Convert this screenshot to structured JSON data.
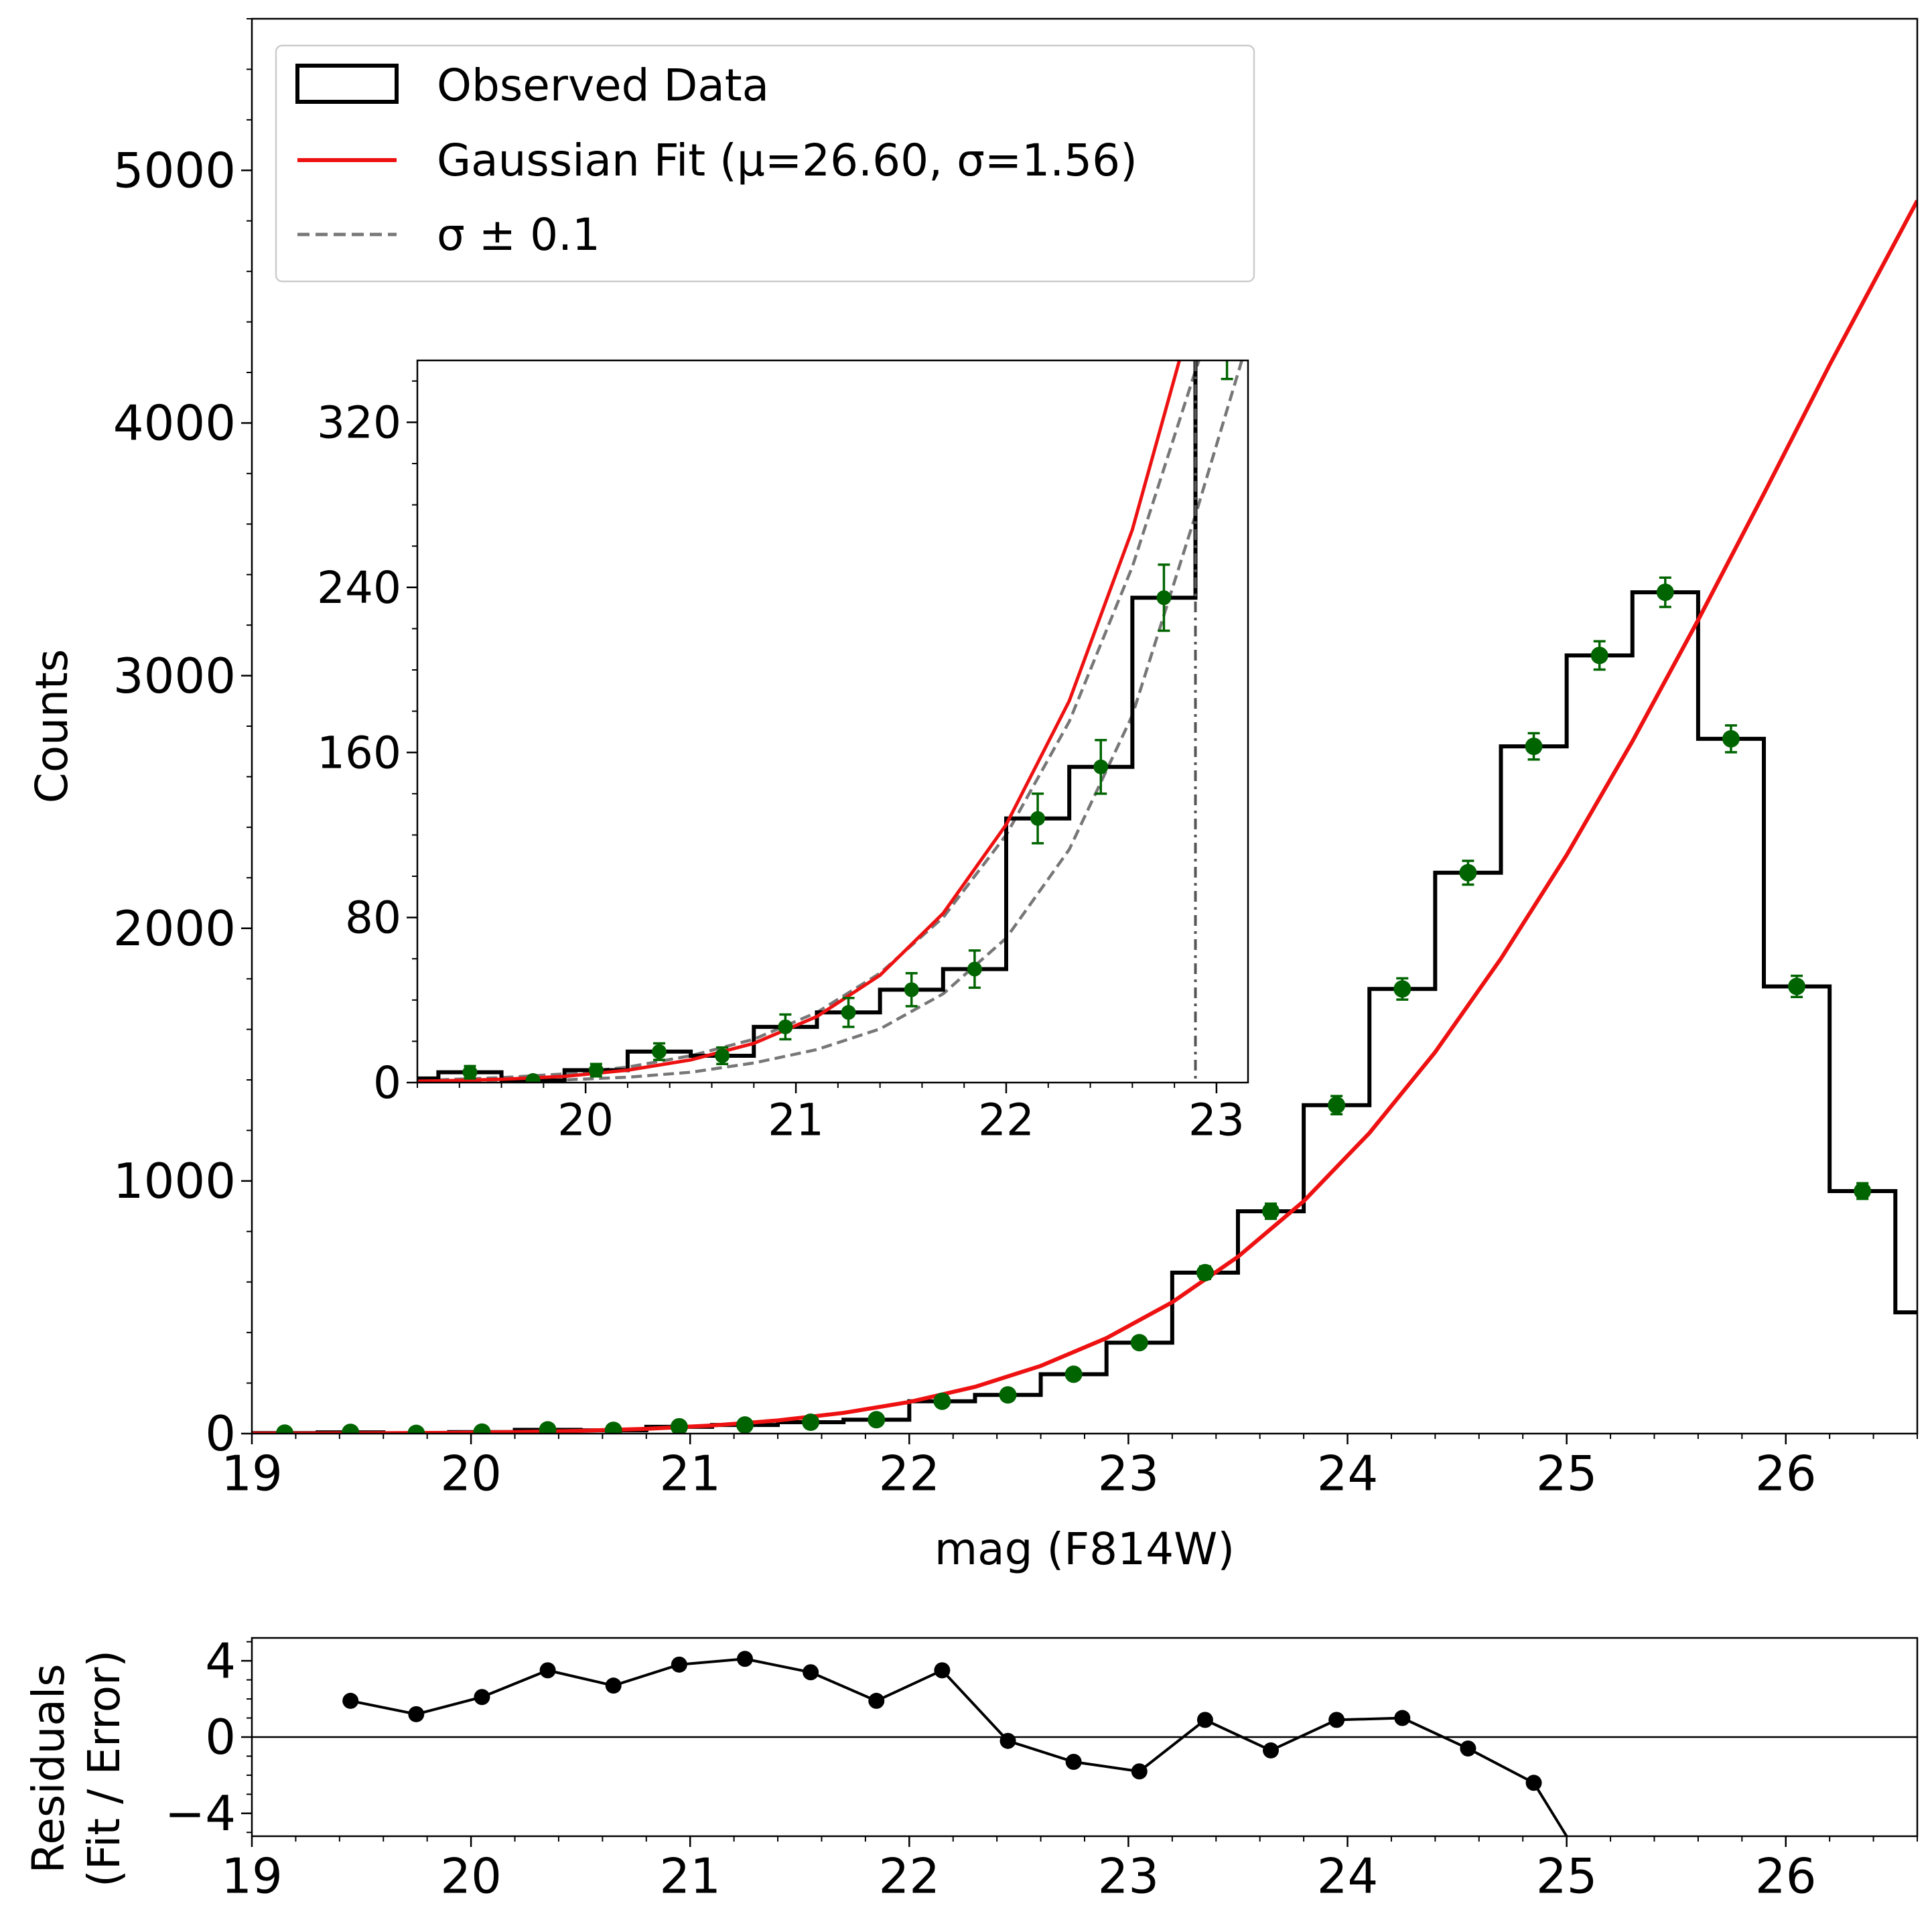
{
  "chart_data": [
    {
      "type": "histogram-line",
      "panel": "main",
      "xlabel": "mag (F814W)",
      "ylabel": "Counts",
      "xlim": [
        19.0,
        26.6
      ],
      "ylim": [
        0,
        5600
      ],
      "xticks": [
        19,
        20,
        21,
        22,
        23,
        24,
        25,
        26
      ],
      "yticks": [
        0,
        1000,
        2000,
        3000,
        4000,
        5000
      ],
      "bin_edges": [
        19.0,
        19.3,
        19.6,
        19.9,
        20.2,
        20.5,
        20.8,
        21.1,
        21.4,
        21.7,
        22.0,
        22.3,
        22.6,
        22.9,
        23.2,
        23.5,
        23.8,
        24.1,
        24.4,
        24.7,
        25.0,
        25.3,
        25.6,
        25.9,
        26.2,
        26.5,
        26.6
      ],
      "bin_counts": [
        2,
        5,
        1,
        6,
        15,
        13,
        27,
        34,
        45,
        55,
        128,
        153,
        235,
        360,
        637,
        880,
        1300,
        1760,
        2220,
        2720,
        3080,
        3330,
        2750,
        1770,
        960,
        480
      ],
      "error_points": {
        "x": [
          19.15,
          19.45,
          19.75,
          20.05,
          20.35,
          20.65,
          20.95,
          21.25,
          21.55,
          21.85,
          22.15,
          22.45,
          22.75,
          23.05,
          23.35,
          23.65,
          23.95,
          24.25,
          24.55,
          24.85,
          25.15,
          25.45,
          25.75,
          26.05,
          26.35
        ],
        "y": [
          2,
          5,
          1,
          6,
          15,
          13,
          27,
          34,
          45,
          55,
          128,
          153,
          235,
          360,
          637,
          880,
          1300,
          1760,
          2220,
          2720,
          3080,
          3330,
          2750,
          1770,
          960
        ],
        "yerr": [
          2,
          3,
          1,
          3,
          4,
          4,
          6,
          7,
          8,
          9,
          12,
          13,
          16,
          19,
          25,
          30,
          36,
          42,
          47,
          52,
          56,
          58,
          53,
          42,
          31
        ]
      },
      "fit_curve": {
        "name": "Gaussian Fit (μ=26.60, σ=1.56)",
        "x": [
          19.0,
          19.3,
          19.6,
          19.9,
          20.2,
          20.5,
          20.8,
          21.1,
          21.4,
          21.7,
          22.0,
          22.3,
          22.6,
          22.9,
          23.2,
          23.5,
          23.8,
          24.1,
          24.4,
          24.7,
          25.0,
          25.3,
          25.6,
          25.9,
          26.2,
          26.6
        ],
        "y": [
          0.4,
          0.8,
          1.6,
          3,
          6,
          11,
          19,
          32,
          52,
          82,
          125,
          185,
          268,
          378,
          520,
          700,
          920,
          1190,
          1510,
          1880,
          2290,
          2740,
          3220,
          3720,
          4230,
          4880
        ]
      },
      "legend": {
        "placement": "upper-left",
        "entries": [
          "Observed Data",
          "Gaussian Fit (μ=26.60, σ=1.56)",
          "σ ± 0.1"
        ]
      },
      "colors": {
        "histogram": "#000000",
        "fit": "#ee1111",
        "sigma": "#777777",
        "points": "#006400"
      }
    },
    {
      "type": "histogram-line",
      "panel": "inset",
      "xlim": [
        19.2,
        23.15
      ],
      "ylim": [
        0,
        350
      ],
      "xticks": [
        20,
        21,
        22,
        23
      ],
      "yticks": [
        0,
        80,
        160,
        240,
        320
      ],
      "vline_x": 22.9,
      "sigma_lower": {
        "x": [
          19.3,
          19.6,
          19.9,
          20.2,
          20.5,
          20.8,
          21.1,
          21.4,
          21.7,
          22.0,
          22.3,
          22.6,
          22.9,
          23.15
        ],
        "y": [
          0.3,
          0.7,
          1.3,
          2.6,
          5,
          9.5,
          16,
          26,
          43,
          70,
          113,
          178,
          275,
          360
        ]
      },
      "sigma_upper": {
        "x": [
          19.3,
          19.6,
          19.9,
          20.2,
          20.5,
          20.8,
          21.1,
          21.4,
          21.7,
          22.0,
          22.3,
          22.6,
          22.9,
          23.15
        ],
        "y": [
          1.3,
          2.4,
          4.2,
          7.5,
          13,
          21,
          34,
          53,
          80,
          120,
          175,
          250,
          345,
          420
        ]
      }
    },
    {
      "type": "line",
      "panel": "residuals",
      "ylabel_line1": "Residuals",
      "ylabel_line2": "(Fit / Error)",
      "xlim": [
        19.0,
        26.6
      ],
      "ylim": [
        -5.2,
        5.2
      ],
      "xticks": [
        19,
        20,
        21,
        22,
        23,
        24,
        25,
        26
      ],
      "yticks": [
        -4,
        0,
        4
      ],
      "ytick_labels": [
        "−4",
        "0",
        "4"
      ],
      "x": [
        19.45,
        19.75,
        20.05,
        20.35,
        20.65,
        20.95,
        21.25,
        21.55,
        21.85,
        22.15,
        22.45,
        22.75,
        23.05,
        23.35,
        23.65,
        23.95,
        24.25,
        24.55,
        24.85
      ],
      "y": [
        1.9,
        1.2,
        2.1,
        3.5,
        2.7,
        3.8,
        4.1,
        3.4,
        1.9,
        3.5,
        -0.2,
        -1.3,
        -1.8,
        0.9,
        -0.7,
        0.9,
        1.0,
        -0.6,
        -2.4
      ],
      "trailing_segment_to": [
        25.0,
        -5.2
      ]
    }
  ]
}
